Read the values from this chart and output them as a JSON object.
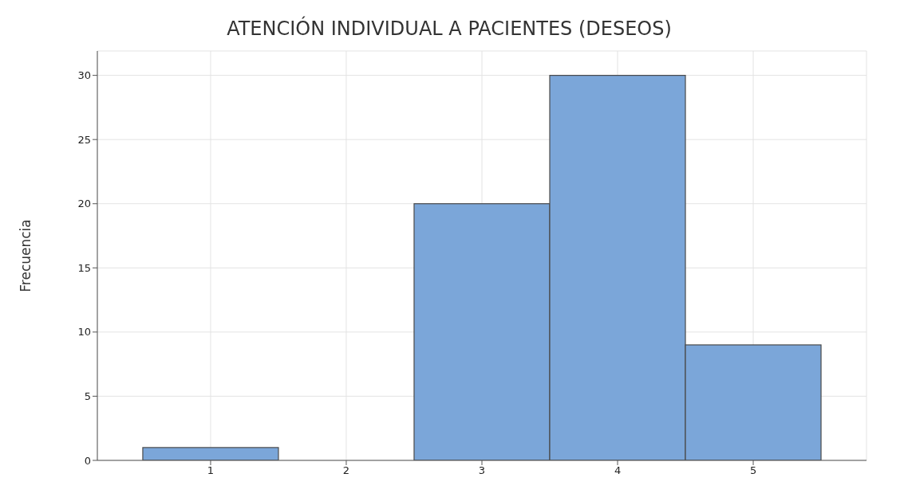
{
  "chart_data": {
    "type": "histogram",
    "title": "ATENCIÓN INDIVIDUAL A PACIENTES (DESEOS)",
    "ylabel": "Frecuencia",
    "bins": [
      0.5,
      1.5,
      2.5,
      3.5,
      4.5,
      5.5
    ],
    "values": [
      1,
      0,
      20,
      30,
      9
    ],
    "color": "#7ba6d9",
    "xlim": [
      0.165,
      5.835
    ],
    "xticks": [
      1,
      2,
      3,
      4,
      5
    ],
    "ylim": [
      0,
      31.9
    ],
    "yticks": [
      0,
      5,
      10,
      15,
      20,
      25,
      30
    ],
    "grid": true
  }
}
